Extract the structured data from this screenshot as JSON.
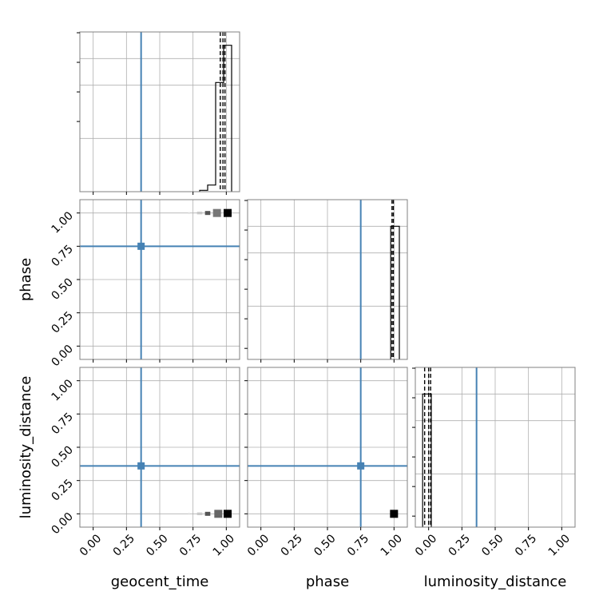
{
  "chart_data": {
    "type": "corner",
    "parameters": [
      "geocent_time",
      "phase",
      "luminosity_distance"
    ],
    "axis_labels": {
      "x": [
        "geocent_time",
        "phase",
        "luminosity_distance"
      ],
      "y": [
        "",
        "phase",
        "luminosity_distance"
      ]
    },
    "tick_values": [
      0.0,
      0.25,
      0.5,
      0.75,
      1.0
    ],
    "tick_labels": [
      "0.00",
      "0.25",
      "0.50",
      "0.75",
      "1.00"
    ],
    "axis_range": [
      -0.1,
      1.1
    ],
    "grid": true,
    "truth_color": "#4682b4",
    "truths": {
      "geocent_time": 0.36,
      "phase": 0.75,
      "luminosity_distance": 0.36
    },
    "quantile_lines": {
      "geocent_time": [
        0.955,
        0.975,
        0.99
      ],
      "phase": [
        0.985,
        0.995
      ],
      "luminosity_distance": [
        -0.03,
        0.0,
        0.015
      ]
    },
    "diagonal_histograms": [
      {
        "parameter": "geocent_time",
        "ylim": [
          0,
          1.2
        ],
        "bins": [
          {
            "left": 0.8,
            "right": 0.86,
            "height": 0.01
          },
          {
            "left": 0.86,
            "right": 0.92,
            "height": 0.05
          },
          {
            "left": 0.92,
            "right": 0.98,
            "height": 0.82
          },
          {
            "left": 0.98,
            "right": 1.04,
            "height": 1.1
          }
        ]
      },
      {
        "parameter": "phase",
        "ylim": [
          0,
          1.2
        ],
        "bins": [
          {
            "left": 0.975,
            "right": 1.04,
            "height": 1.0
          }
        ]
      },
      {
        "parameter": "luminosity_distance",
        "ylim": [
          0,
          1.2
        ],
        "bins": [
          {
            "left": -0.045,
            "right": 0.02,
            "height": 1.0
          }
        ]
      }
    ],
    "density_panels": [
      {
        "x": "geocent_time",
        "y": "phase",
        "cells": [
          {
            "x": 0.72,
            "y": 1.0,
            "w": 0.015,
            "h": 0.012,
            "shade": "#dddddd"
          },
          {
            "x": 0.8,
            "y": 1.0,
            "w": 0.04,
            "h": 0.02,
            "shade": "#c8c8c8"
          },
          {
            "x": 0.86,
            "y": 1.0,
            "w": 0.04,
            "h": 0.03,
            "shade": "#555555"
          },
          {
            "x": 0.93,
            "y": 1.0,
            "w": 0.06,
            "h": 0.06,
            "shade": "#777777"
          },
          {
            "x": 1.01,
            "y": 1.0,
            "w": 0.06,
            "h": 0.06,
            "shade": "#000000"
          }
        ]
      },
      {
        "x": "geocent_time",
        "y": "luminosity_distance",
        "cells": [
          {
            "x": 0.72,
            "y": 0.0,
            "w": 0.015,
            "h": 0.012,
            "shade": "#dddddd"
          },
          {
            "x": 0.8,
            "y": 0.0,
            "w": 0.04,
            "h": 0.02,
            "shade": "#c8c8c8"
          },
          {
            "x": 0.86,
            "y": 0.0,
            "w": 0.04,
            "h": 0.03,
            "shade": "#555555"
          },
          {
            "x": 0.94,
            "y": 0.0,
            "w": 0.06,
            "h": 0.06,
            "shade": "#666666"
          },
          {
            "x": 1.01,
            "y": 0.0,
            "w": 0.06,
            "h": 0.06,
            "shade": "#000000"
          }
        ]
      },
      {
        "x": "phase",
        "y": "luminosity_distance",
        "cells": [
          {
            "x": 1.0,
            "y": 0.0,
            "w": 0.06,
            "h": 0.06,
            "shade": "#000000"
          }
        ]
      }
    ]
  }
}
